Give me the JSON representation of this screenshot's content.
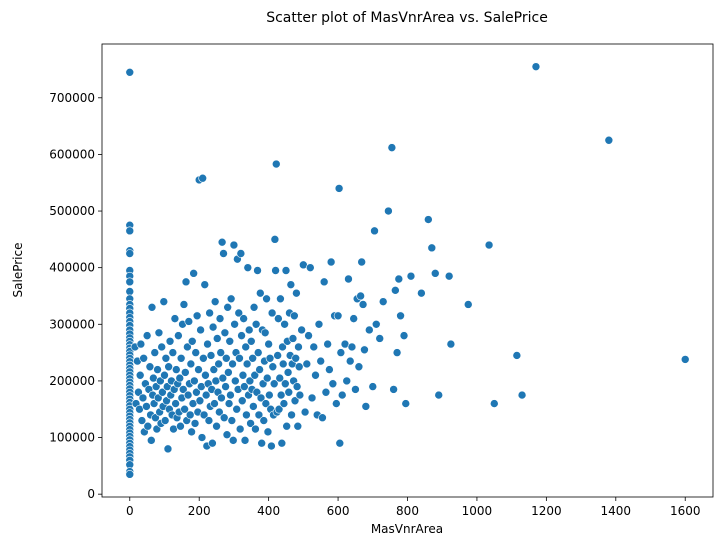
{
  "chart_data": {
    "type": "scatter",
    "title": "Scatter plot of MasVnrArea vs. SalePrice",
    "xlabel": "MasVnrArea",
    "ylabel": "SalePrice",
    "xlim": [
      -80,
      1680
    ],
    "ylim": [
      -5000,
      795000
    ],
    "xticks": [
      0,
      200,
      400,
      600,
      800,
      1000,
      1200,
      1400,
      1600
    ],
    "yticks": [
      0,
      100000,
      200000,
      300000,
      400000,
      500000,
      600000,
      700000
    ],
    "grid": false,
    "point_color": "#1f77b4",
    "points": [
      [
        0,
        745000
      ],
      [
        0,
        475000
      ],
      [
        0,
        465000
      ],
      [
        0,
        430000
      ],
      [
        0,
        425000
      ],
      [
        0,
        395000
      ],
      [
        0,
        385000
      ],
      [
        0,
        375000
      ],
      [
        0,
        358000
      ],
      [
        0,
        345000
      ],
      [
        0,
        335000
      ],
      [
        0,
        328000
      ],
      [
        0,
        320000
      ],
      [
        0,
        312000
      ],
      [
        0,
        305000
      ],
      [
        0,
        298000
      ],
      [
        0,
        290000
      ],
      [
        0,
        283000
      ],
      [
        0,
        276000
      ],
      [
        0,
        270000
      ],
      [
        0,
        264000
      ],
      [
        0,
        258000
      ],
      [
        0,
        252000
      ],
      [
        0,
        246000
      ],
      [
        0,
        240000
      ],
      [
        0,
        234000
      ],
      [
        0,
        228000
      ],
      [
        0,
        222000
      ],
      [
        0,
        216000
      ],
      [
        0,
        210000
      ],
      [
        0,
        204000
      ],
      [
        0,
        198000
      ],
      [
        0,
        192000
      ],
      [
        0,
        186000
      ],
      [
        0,
        180000
      ],
      [
        0,
        174000
      ],
      [
        0,
        168000
      ],
      [
        0,
        162000
      ],
      [
        0,
        156000
      ],
      [
        0,
        150000
      ],
      [
        0,
        144000
      ],
      [
        0,
        138000
      ],
      [
        0,
        132000
      ],
      [
        0,
        126000
      ],
      [
        0,
        120000
      ],
      [
        0,
        114000
      ],
      [
        0,
        108000
      ],
      [
        0,
        102000
      ],
      [
        0,
        96000
      ],
      [
        0,
        90000
      ],
      [
        0,
        84000
      ],
      [
        0,
        78000
      ],
      [
        0,
        72000
      ],
      [
        0,
        66000
      ],
      [
        0,
        60000
      ],
      [
        0,
        52000
      ],
      [
        0,
        40000
      ],
      [
        0,
        35000
      ],
      [
        15,
        260000
      ],
      [
        18,
        160000
      ],
      [
        22,
        235000
      ],
      [
        25,
        180000
      ],
      [
        28,
        150000
      ],
      [
        30,
        210000
      ],
      [
        32,
        265000
      ],
      [
        35,
        130000
      ],
      [
        38,
        170000
      ],
      [
        40,
        240000
      ],
      [
        42,
        110000
      ],
      [
        45,
        195000
      ],
      [
        48,
        155000
      ],
      [
        50,
        280000
      ],
      [
        52,
        120000
      ],
      [
        55,
        185000
      ],
      [
        58,
        225000
      ],
      [
        60,
        140000
      ],
      [
        62,
        95000
      ],
      [
        64,
        330000
      ],
      [
        66,
        175000
      ],
      [
        68,
        205000
      ],
      [
        70,
        160000
      ],
      [
        72,
        250000
      ],
      [
        74,
        135000
      ],
      [
        76,
        190000
      ],
      [
        78,
        115000
      ],
      [
        80,
        220000
      ],
      [
        82,
        170000
      ],
      [
        84,
        285000
      ],
      [
        86,
        145000
      ],
      [
        88,
        200000
      ],
      [
        90,
        125000
      ],
      [
        92,
        260000
      ],
      [
        94,
        180000
      ],
      [
        96,
        155000
      ],
      [
        98,
        340000
      ],
      [
        100,
        210000
      ],
      [
        102,
        130000
      ],
      [
        104,
        240000
      ],
      [
        106,
        165000
      ],
      [
        108,
        190000
      ],
      [
        110,
        80000
      ],
      [
        112,
        225000
      ],
      [
        114,
        150000
      ],
      [
        116,
        270000
      ],
      [
        118,
        175000
      ],
      [
        120,
        200000
      ],
      [
        122,
        140000
      ],
      [
        124,
        250000
      ],
      [
        126,
        115000
      ],
      [
        128,
        185000
      ],
      [
        130,
        310000
      ],
      [
        132,
        160000
      ],
      [
        134,
        220000
      ],
      [
        136,
        135000
      ],
      [
        138,
        195000
      ],
      [
        140,
        280000
      ],
      [
        142,
        145000
      ],
      [
        144,
        205000
      ],
      [
        146,
        120000
      ],
      [
        148,
        240000
      ],
      [
        150,
        170000
      ],
      [
        152,
        300000
      ],
      [
        154,
        185000
      ],
      [
        156,
        335000
      ],
      [
        158,
        150000
      ],
      [
        160,
        215000
      ],
      [
        162,
        375000
      ],
      [
        164,
        130000
      ],
      [
        166,
        260000
      ],
      [
        168,
        175000
      ],
      [
        170,
        305000
      ],
      [
        172,
        195000
      ],
      [
        174,
        140000
      ],
      [
        176,
        230000
      ],
      [
        178,
        110000
      ],
      [
        180,
        270000
      ],
      [
        182,
        160000
      ],
      [
        184,
        390000
      ],
      [
        186,
        200000
      ],
      [
        188,
        125000
      ],
      [
        190,
        250000
      ],
      [
        192,
        180000
      ],
      [
        194,
        315000
      ],
      [
        196,
        145000
      ],
      [
        198,
        220000
      ],
      [
        200,
        555000
      ],
      [
        202,
        165000
      ],
      [
        204,
        290000
      ],
      [
        206,
        190000
      ],
      [
        208,
        100000
      ],
      [
        210,
        558000
      ],
      [
        212,
        240000
      ],
      [
        214,
        140000
      ],
      [
        216,
        370000
      ],
      [
        218,
        210000
      ],
      [
        220,
        175000
      ],
      [
        222,
        85000
      ],
      [
        224,
        265000
      ],
      [
        226,
        195000
      ],
      [
        228,
        130000
      ],
      [
        230,
        320000
      ],
      [
        232,
        155000
      ],
      [
        234,
        245000
      ],
      [
        236,
        185000
      ],
      [
        238,
        90000
      ],
      [
        240,
        295000
      ],
      [
        242,
        220000
      ],
      [
        244,
        160000
      ],
      [
        246,
        340000
      ],
      [
        248,
        200000
      ],
      [
        250,
        120000
      ],
      [
        252,
        275000
      ],
      [
        254,
        180000
      ],
      [
        256,
        230000
      ],
      [
        258,
        145000
      ],
      [
        260,
        310000
      ],
      [
        262,
        250000
      ],
      [
        264,
        170000
      ],
      [
        266,
        445000
      ],
      [
        268,
        205000
      ],
      [
        270,
        425000
      ],
      [
        272,
        135000
      ],
      [
        274,
        285000
      ],
      [
        276,
        190000
      ],
      [
        278,
        240000
      ],
      [
        280,
        105000
      ],
      [
        282,
        330000
      ],
      [
        284,
        215000
      ],
      [
        286,
        160000
      ],
      [
        288,
        270000
      ],
      [
        290,
        175000
      ],
      [
        292,
        345000
      ],
      [
        294,
        130000
      ],
      [
        296,
        230000
      ],
      [
        298,
        95000
      ],
      [
        300,
        440000
      ],
      [
        302,
        300000
      ],
      [
        304,
        200000
      ],
      [
        306,
        250000
      ],
      [
        308,
        150000
      ],
      [
        310,
        415000
      ],
      [
        312,
        185000
      ],
      [
        314,
        320000
      ],
      [
        316,
        240000
      ],
      [
        318,
        115000
      ],
      [
        320,
        425000
      ],
      [
        322,
        280000
      ],
      [
        324,
        165000
      ],
      [
        326,
        210000
      ],
      [
        328,
        310000
      ],
      [
        330,
        190000
      ],
      [
        332,
        95000
      ],
      [
        334,
        260000
      ],
      [
        336,
        140000
      ],
      [
        338,
        230000
      ],
      [
        340,
        400000
      ],
      [
        342,
        175000
      ],
      [
        344,
        290000
      ],
      [
        346,
        200000
      ],
      [
        348,
        125000
      ],
      [
        350,
        270000
      ],
      [
        352,
        185000
      ],
      [
        354,
        240000
      ],
      [
        356,
        155000
      ],
      [
        358,
        330000
      ],
      [
        360,
        210000
      ],
      [
        362,
        115000
      ],
      [
        364,
        300000
      ],
      [
        366,
        180000
      ],
      [
        368,
        395000
      ],
      [
        370,
        250000
      ],
      [
        372,
        140000
      ],
      [
        374,
        220000
      ],
      [
        376,
        355000
      ],
      [
        378,
        170000
      ],
      [
        380,
        90000
      ],
      [
        382,
        290000
      ],
      [
        384,
        195000
      ],
      [
        386,
        130000
      ],
      [
        388,
        235000
      ],
      [
        390,
        285000
      ],
      [
        392,
        160000
      ],
      [
        394,
        345000
      ],
      [
        396,
        205000
      ],
      [
        398,
        110000
      ],
      [
        400,
        265000
      ],
      [
        402,
        175000
      ],
      [
        404,
        240000
      ],
      [
        406,
        150000
      ],
      [
        408,
        85000
      ],
      [
        410,
        320000
      ],
      [
        412,
        225000
      ],
      [
        414,
        140000
      ],
      [
        416,
        195000
      ],
      [
        418,
        450000
      ],
      [
        420,
        395000
      ],
      [
        422,
        583000
      ],
      [
        424,
        145000
      ],
      [
        426,
        245000
      ],
      [
        428,
        310000
      ],
      [
        430,
        150000
      ],
      [
        432,
        205000
      ],
      [
        434,
        345000
      ],
      [
        436,
        175000
      ],
      [
        438,
        90000
      ],
      [
        440,
        260000
      ],
      [
        442,
        230000
      ],
      [
        444,
        160000
      ],
      [
        446,
        300000
      ],
      [
        448,
        195000
      ],
      [
        450,
        395000
      ],
      [
        452,
        120000
      ],
      [
        454,
        270000
      ],
      [
        456,
        215000
      ],
      [
        458,
        180000
      ],
      [
        460,
        320000
      ],
      [
        462,
        245000
      ],
      [
        464,
        370000
      ],
      [
        466,
        140000
      ],
      [
        468,
        230000
      ],
      [
        470,
        275000
      ],
      [
        472,
        200000
      ],
      [
        474,
        315000
      ],
      [
        476,
        165000
      ],
      [
        478,
        240000
      ],
      [
        480,
        355000
      ],
      [
        482,
        190000
      ],
      [
        484,
        120000
      ],
      [
        486,
        260000
      ],
      [
        488,
        225000
      ],
      [
        490,
        175000
      ],
      [
        495,
        290000
      ],
      [
        500,
        405000
      ],
      [
        505,
        145000
      ],
      [
        510,
        230000
      ],
      [
        515,
        280000
      ],
      [
        520,
        400000
      ],
      [
        525,
        170000
      ],
      [
        530,
        260000
      ],
      [
        535,
        210000
      ],
      [
        540,
        140000
      ],
      [
        545,
        300000
      ],
      [
        550,
        235000
      ],
      [
        555,
        135000
      ],
      [
        560,
        375000
      ],
      [
        565,
        180000
      ],
      [
        570,
        265000
      ],
      [
        575,
        220000
      ],
      [
        580,
        410000
      ],
      [
        585,
        195000
      ],
      [
        590,
        315000
      ],
      [
        595,
        160000
      ],
      [
        600,
        315000
      ],
      [
        603,
        540000
      ],
      [
        605,
        90000
      ],
      [
        608,
        250000
      ],
      [
        612,
        175000
      ],
      [
        620,
        265000
      ],
      [
        625,
        200000
      ],
      [
        630,
        380000
      ],
      [
        635,
        235000
      ],
      [
        640,
        260000
      ],
      [
        645,
        310000
      ],
      [
        650,
        185000
      ],
      [
        655,
        345000
      ],
      [
        660,
        225000
      ],
      [
        665,
        350000
      ],
      [
        668,
        410000
      ],
      [
        672,
        335000
      ],
      [
        676,
        255000
      ],
      [
        680,
        155000
      ],
      [
        690,
        290000
      ],
      [
        700,
        190000
      ],
      [
        705,
        465000
      ],
      [
        710,
        300000
      ],
      [
        720,
        275000
      ],
      [
        730,
        340000
      ],
      [
        745,
        500000
      ],
      [
        755,
        612000
      ],
      [
        760,
        185000
      ],
      [
        765,
        360000
      ],
      [
        770,
        250000
      ],
      [
        775,
        380000
      ],
      [
        780,
        315000
      ],
      [
        790,
        280000
      ],
      [
        795,
        160000
      ],
      [
        810,
        385000
      ],
      [
        840,
        355000
      ],
      [
        860,
        485000
      ],
      [
        870,
        435000
      ],
      [
        880,
        390000
      ],
      [
        890,
        175000
      ],
      [
        920,
        385000
      ],
      [
        925,
        265000
      ],
      [
        975,
        335000
      ],
      [
        1035,
        440000
      ],
      [
        1050,
        160000
      ],
      [
        1115,
        245000
      ],
      [
        1130,
        175000
      ],
      [
        1170,
        755000
      ],
      [
        1380,
        625000
      ],
      [
        1600,
        238000
      ]
    ]
  }
}
